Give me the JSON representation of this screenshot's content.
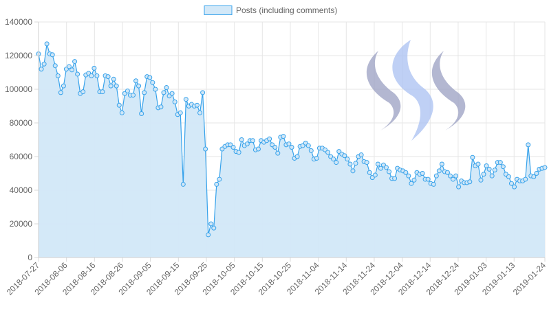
{
  "chart_data": {
    "type": "area",
    "title": "",
    "xlabel": "",
    "ylabel": "",
    "ylim": [
      0,
      140000
    ],
    "yticks": [
      "0",
      "20000",
      "40000",
      "60000",
      "80000",
      "100000",
      "120000",
      "140000"
    ],
    "xticks": [
      "2018-07-27",
      "2018-08-06",
      "2018-08-16",
      "2018-08-26",
      "2018-09-05",
      "2018-09-15",
      "2018-09-25",
      "2018-10-05",
      "2018-10-15",
      "2018-10-25",
      "2018-11-04",
      "2018-11-14",
      "2018-11-24",
      "2018-12-04",
      "2018-12-14",
      "2018-12-24",
      "2019-01-03",
      "2019-01-13",
      "2019-01-24"
    ],
    "x_start": "2018-07-27",
    "x_end": "2019-01-24",
    "grid": true,
    "legend_position": "top",
    "series": [
      {
        "name": "Posts (including comments)",
        "color": "#36a2eb",
        "fill": "#d2e8f8",
        "values": [
          121000,
          112000,
          115000,
          127000,
          121000,
          120500,
          114000,
          108000,
          98000,
          102000,
          112000,
          113500,
          111500,
          116500,
          109000,
          97500,
          98500,
          108500,
          109500,
          108000,
          112500,
          108000,
          98500,
          98500,
          108000,
          107500,
          102000,
          106000,
          102000,
          90500,
          86000,
          97500,
          99000,
          96500,
          96500,
          105000,
          102000,
          85500,
          98000,
          107500,
          107000,
          104000,
          100000,
          89000,
          89500,
          98000,
          101000,
          96000,
          97500,
          92500,
          85000,
          86000,
          43500,
          94000,
          90000,
          91000,
          90000,
          90500,
          86000,
          98000,
          64500,
          13500,
          20000,
          17500,
          43500,
          46500,
          64500,
          66000,
          67000,
          67000,
          65500,
          63000,
          62500,
          70000,
          66500,
          67500,
          69500,
          69500,
          64000,
          64500,
          69500,
          68500,
          69500,
          70500,
          67000,
          65500,
          62000,
          71500,
          72000,
          67000,
          67500,
          65500,
          59000,
          60000,
          66000,
          66500,
          68000,
          66500,
          63500,
          58500,
          59000,
          65000,
          65000,
          64000,
          62500,
          60000,
          58500,
          56500,
          63000,
          61500,
          60500,
          58500,
          55500,
          51500,
          56000,
          60000,
          61000,
          57000,
          56500,
          50500,
          47500,
          49000,
          55500,
          53000,
          55000,
          53500,
          51000,
          47000,
          47000,
          53000,
          52000,
          51500,
          50500,
          48500,
          44000,
          46000,
          50500,
          49500,
          50000,
          46500,
          46500,
          44000,
          43500,
          48500,
          51500,
          55500,
          51000,
          50500,
          48500,
          46500,
          48500,
          42000,
          45500,
          44500,
          44500,
          45000,
          59500,
          54500,
          55500,
          46000,
          49500,
          54500,
          52500,
          48500,
          52000,
          56500,
          56500,
          54000,
          49500,
          48000,
          44000,
          42000,
          46500,
          45500,
          45500,
          46500,
          67000,
          48500,
          48000,
          50000,
          52500,
          53000,
          53500
        ]
      }
    ]
  }
}
